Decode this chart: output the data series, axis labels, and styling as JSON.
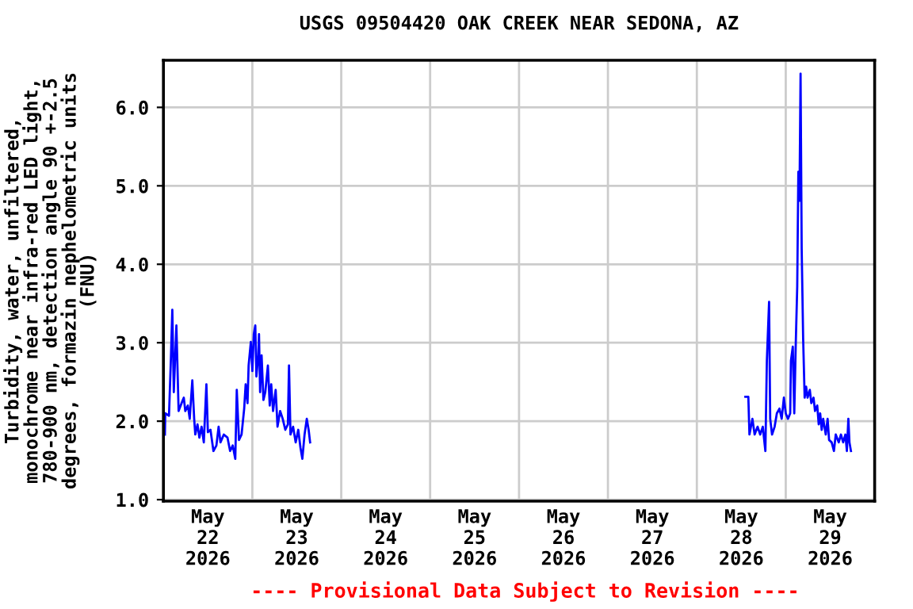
{
  "chart_data": {
    "type": "line",
    "title": "USGS 09504420 OAK CREEK NEAR SEDONA, AZ",
    "ylabel": "Turbidity, water, unfiltered,\nmonochrome near infra-red LED light,\n780-900 nm, detection angle 90 +-2.5\ndegrees, formazin nephelometric units\n(FNU)",
    "annotations": [
      "---- Provisional Data Subject to Revision ----"
    ],
    "series": [
      {
        "color": "#0000ff",
        "x": [
          "2026-05-22T00:24",
          "2026-05-22T00:30",
          "2026-05-22T01:30",
          "2026-05-22T02:00",
          "2026-05-22T02:24",
          "2026-05-22T02:48",
          "2026-05-22T03:30",
          "2026-05-22T04:06",
          "2026-05-22T04:54",
          "2026-05-22T05:30",
          "2026-05-22T05:54",
          "2026-05-22T06:36",
          "2026-05-22T07:06",
          "2026-05-22T07:48",
          "2026-05-22T08:18",
          "2026-05-22T08:36",
          "2026-05-22T09:12",
          "2026-05-22T09:42",
          "2026-05-22T10:18",
          "2026-05-22T10:54",
          "2026-05-22T11:36",
          "2026-05-22T12:00",
          "2026-05-22T12:42",
          "2026-05-22T13:30",
          "2026-05-22T14:18",
          "2026-05-22T14:54",
          "2026-05-22T15:24",
          "2026-05-22T16:18",
          "2026-05-22T17:18",
          "2026-05-22T18:00",
          "2026-05-22T18:42",
          "2026-05-22T19:24",
          "2026-05-22T19:48",
          "2026-05-22T20:24",
          "2026-05-22T21:06",
          "2026-05-22T21:48",
          "2026-05-22T22:12",
          "2026-05-22T22:42",
          "2026-05-22T23:00",
          "2026-05-22T23:36",
          "2026-05-23T00:00",
          "2026-05-23T00:24",
          "2026-05-23T00:48",
          "2026-05-23T01:06",
          "2026-05-23T01:36",
          "2026-05-23T01:48",
          "2026-05-23T02:06",
          "2026-05-23T02:30",
          "2026-05-23T03:00",
          "2026-05-23T03:30",
          "2026-05-23T04:12",
          "2026-05-23T04:42",
          "2026-05-23T05:06",
          "2026-05-23T05:36",
          "2026-05-23T06:18",
          "2026-05-23T06:48",
          "2026-05-23T07:30",
          "2026-05-23T08:12",
          "2026-05-23T08:54",
          "2026-05-23T09:36",
          "2026-05-23T09:54",
          "2026-05-23T10:18",
          "2026-05-23T11:00",
          "2026-05-23T11:42",
          "2026-05-23T12:24",
          "2026-05-23T13:00",
          "2026-05-23T13:30",
          "2026-05-23T14:06",
          "2026-05-23T14:42",
          "2026-05-23T15:12",
          "2026-05-23T15:36",
          "2026-05-25T12:00",
          "2026-05-28T13:06",
          "2026-05-28T13:54",
          "2026-05-28T14:12",
          "2026-05-28T15:00",
          "2026-05-28T15:36",
          "2026-05-28T16:24",
          "2026-05-28T17:06",
          "2026-05-28T17:48",
          "2026-05-28T18:30",
          "2026-05-28T18:54",
          "2026-05-28T19:30",
          "2026-05-28T19:48",
          "2026-05-28T20:18",
          "2026-05-28T21:00",
          "2026-05-28T21:36",
          "2026-05-28T22:18",
          "2026-05-28T22:54",
          "2026-05-28T23:30",
          "2026-05-29T00:00",
          "2026-05-29T00:36",
          "2026-05-29T01:12",
          "2026-05-29T01:24",
          "2026-05-29T01:54",
          "2026-05-29T02:18",
          "2026-05-29T02:42",
          "2026-05-29T03:06",
          "2026-05-29T03:24",
          "2026-05-29T03:42",
          "2026-05-29T04:00",
          "2026-05-29T04:18",
          "2026-05-29T04:42",
          "2026-05-29T05:06",
          "2026-05-29T05:30",
          "2026-05-29T05:54",
          "2026-05-29T06:30",
          "2026-05-29T06:54",
          "2026-05-29T07:30",
          "2026-05-29T07:54",
          "2026-05-29T08:30",
          "2026-05-29T08:54",
          "2026-05-29T09:18",
          "2026-05-29T09:42",
          "2026-05-29T10:06",
          "2026-05-29T10:48",
          "2026-05-29T11:18",
          "2026-05-29T11:42",
          "2026-05-29T12:24",
          "2026-05-29T13:00",
          "2026-05-29T13:30",
          "2026-05-29T14:18",
          "2026-05-29T14:54",
          "2026-05-29T15:30",
          "2026-05-29T16:06",
          "2026-05-29T16:30",
          "2026-05-29T16:54",
          "2026-05-29T17:12",
          "2026-05-29T17:36"
        ],
        "values": [
          1.83,
          2.1,
          2.07,
          2.77,
          3.42,
          2.37,
          3.22,
          2.13,
          2.23,
          2.3,
          2.13,
          2.2,
          2.03,
          2.52,
          2.03,
          1.83,
          1.96,
          1.79,
          1.93,
          1.73,
          2.47,
          1.86,
          1.89,
          1.62,
          1.69,
          1.93,
          1.73,
          1.83,
          1.79,
          1.62,
          1.69,
          1.52,
          2.4,
          1.76,
          1.83,
          2.16,
          2.47,
          2.23,
          2.71,
          3.01,
          2.64,
          3.11,
          3.22,
          2.57,
          2.84,
          3.11,
          2.37,
          2.84,
          2.27,
          2.37,
          2.71,
          2.2,
          2.47,
          2.13,
          2.4,
          1.93,
          2.13,
          2.03,
          1.89,
          1.96,
          2.71,
          1.83,
          1.93,
          1.73,
          1.89,
          1.66,
          1.52,
          1.83,
          2.03,
          1.89,
          1.73,
          null,
          2.31,
          2.31,
          1.83,
          2.03,
          1.83,
          1.93,
          1.83,
          1.93,
          1.62,
          2.77,
          3.52,
          2.03,
          1.83,
          1.93,
          2.1,
          2.16,
          2.03,
          2.3,
          2.1,
          2.03,
          2.1,
          2.77,
          2.95,
          2.1,
          2.98,
          3.72,
          5.18,
          4.81,
          6.43,
          4.2,
          3.05,
          2.3,
          2.44,
          2.3,
          2.4,
          2.23,
          2.3,
          2.13,
          2.2,
          1.96,
          2.1,
          1.89,
          2.03,
          1.83,
          2.03,
          1.76,
          1.73,
          1.62,
          1.83,
          1.73,
          1.83,
          1.73,
          1.83,
          1.62,
          2.03,
          1.73,
          1.62
        ]
      }
    ],
    "xlim": [
      "2026-05-22T00:00",
      "2026-05-30T00:00"
    ],
    "xticks": [
      {
        "value": "2026-05-22T00:00",
        "label": null
      },
      {
        "value": "2026-05-22T12:00",
        "label": "May\n22\n2026"
      },
      {
        "value": "2026-05-23T00:00",
        "label": null
      },
      {
        "value": "2026-05-23T12:00",
        "label": "May\n23\n2026"
      },
      {
        "value": "2026-05-24T00:00",
        "label": null
      },
      {
        "value": "2026-05-24T12:00",
        "label": "May\n24\n2026"
      },
      {
        "value": "2026-05-25T00:00",
        "label": null
      },
      {
        "value": "2026-05-25T12:00",
        "label": "May\n25\n2026"
      },
      {
        "value": "2026-05-26T00:00",
        "label": null
      },
      {
        "value": "2026-05-26T12:00",
        "label": "May\n26\n2026"
      },
      {
        "value": "2026-05-27T00:00",
        "label": null
      },
      {
        "value": "2026-05-27T12:00",
        "label": "May\n27\n2026"
      },
      {
        "value": "2026-05-28T00:00",
        "label": null
      },
      {
        "value": "2026-05-28T12:00",
        "label": "May\n28\n2026"
      },
      {
        "value": "2026-05-29T00:00",
        "label": null
      },
      {
        "value": "2026-05-29T12:00",
        "label": "May\n29\n2026"
      },
      {
        "value": "2026-05-30T00:00",
        "label": null
      }
    ],
    "ylim": [
      0.98,
      6.6
    ],
    "yticks": [
      {
        "value": 1,
        "label": "1.0"
      },
      {
        "value": 2,
        "label": "2.0"
      },
      {
        "value": 3,
        "label": "3.0"
      },
      {
        "value": 4,
        "label": "4.0"
      },
      {
        "value": 5,
        "label": "5.0"
      },
      {
        "value": 6,
        "label": "6.0"
      }
    ],
    "grid": true,
    "line_style": "solid"
  }
}
